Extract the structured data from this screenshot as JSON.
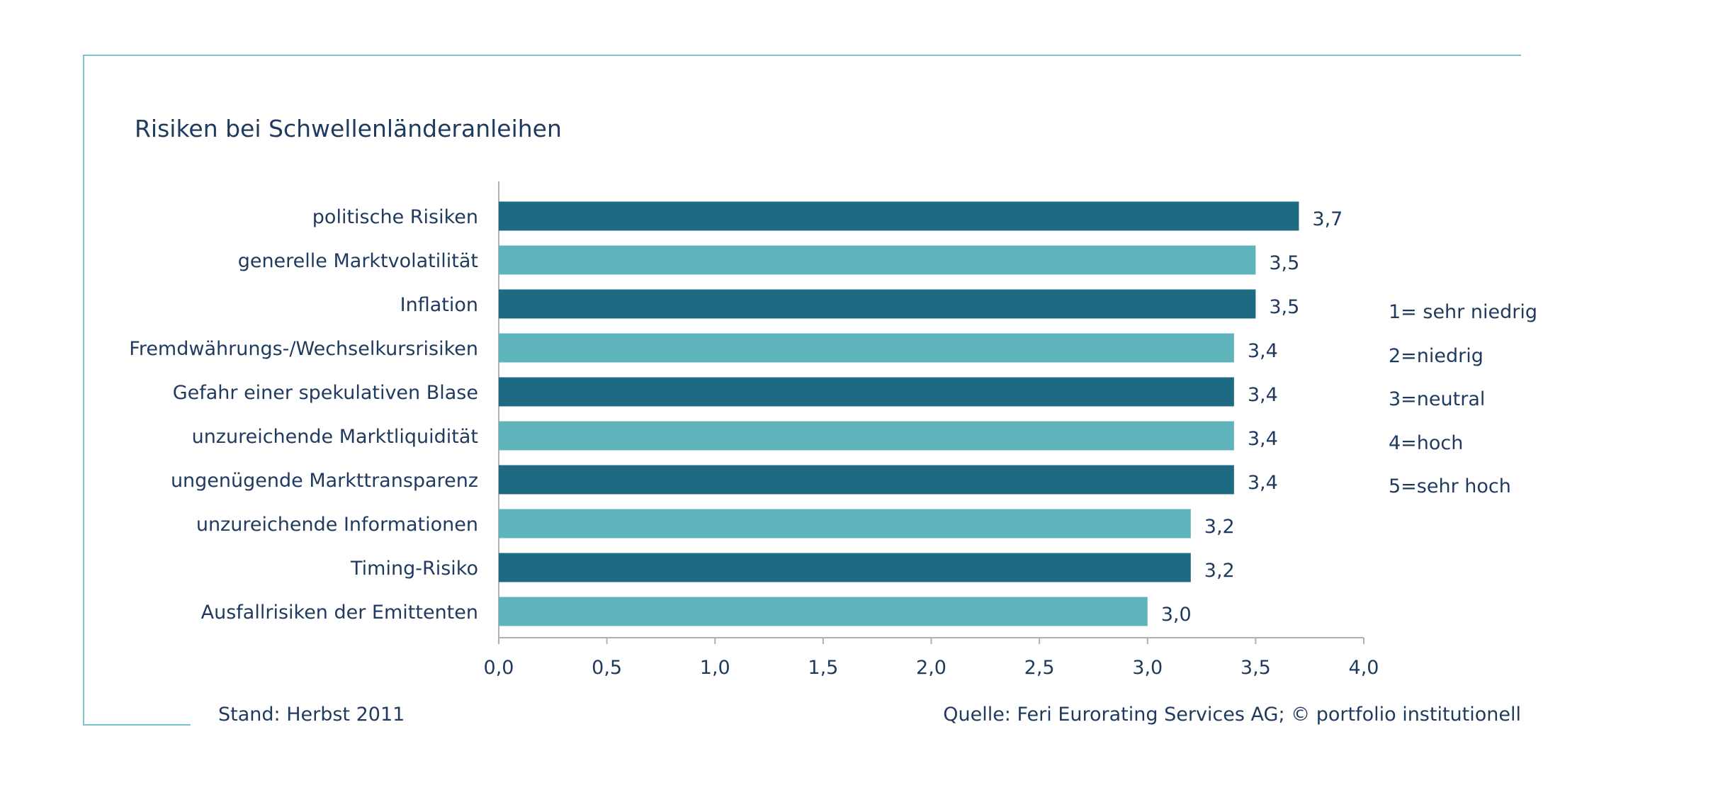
{
  "colors": {
    "bar_dark": "#1e6a82",
    "bar_light": "#5fb4bc",
    "frame": "#7cc4cb",
    "text": "#1f3a5f",
    "axis": "#b0b0b0"
  },
  "footer": {
    "stand": "Stand: Herbst 2011",
    "source": "Quelle: Feri Eurorating Services AG; © portfolio institutionell"
  },
  "legend": {
    "items": [
      "1= sehr niedrig",
      "2=niedrig",
      "3=neutral",
      "4=hoch",
      "5=sehr hoch"
    ]
  },
  "chart_data": {
    "type": "bar",
    "orientation": "horizontal",
    "title": "Risiken bei Schwellenländeranleihen",
    "categories": [
      "politische Risiken",
      "generelle Marktvolatilität",
      "Inflation",
      "Fremdwährungs-/Wechselkursrisiken",
      "Gefahr einer spekulativen Blase",
      "unzureichende Marktliquidität",
      "ungenügende Markttransparenz",
      "unzureichende Informationen",
      "Timing-Risiko",
      "Ausfallrisiken der Emittenten"
    ],
    "values": [
      3.7,
      3.5,
      3.5,
      3.4,
      3.4,
      3.4,
      3.4,
      3.2,
      3.2,
      3.0
    ],
    "value_labels": [
      "3,7",
      "3,5",
      "3,5",
      "3,4",
      "3,4",
      "3,4",
      "3,4",
      "3,2",
      "3,2",
      "3,0"
    ],
    "xlim": [
      0,
      4
    ],
    "xticks": [
      "0,0",
      "0,5",
      "1,0",
      "1,5",
      "2,0",
      "2,5",
      "3,0",
      "3,5",
      "4,0"
    ],
    "bar_colors_alternate": [
      "dark",
      "light"
    ],
    "grid": false,
    "legend_position": "right"
  }
}
